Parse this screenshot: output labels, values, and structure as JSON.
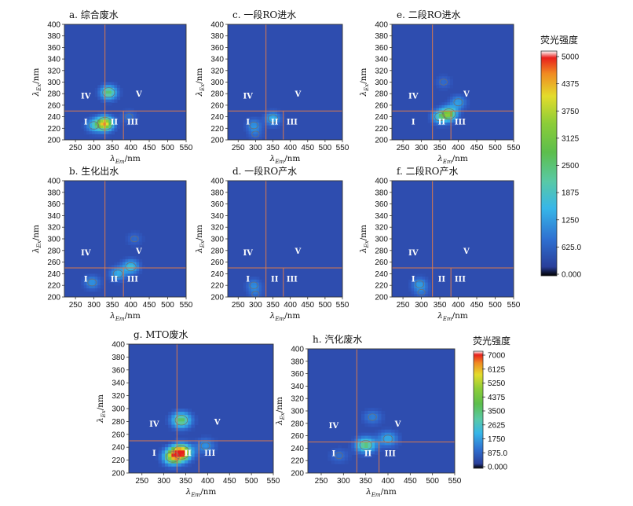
{
  "figure": {
    "x_axis_label": "λEm/nm",
    "y_axis_label": "λEx/nm",
    "colorbar_title": "荧光强度",
    "region_labels": [
      "I",
      "II",
      "III",
      "IV",
      "V"
    ]
  },
  "chart_data": [
    {
      "type": "heatmap",
      "title": "a. 综合废水",
      "xlabel": "λEm/nm",
      "ylabel": "λEx/nm",
      "xlim": [
        220,
        550
      ],
      "ylim": [
        200,
        400
      ],
      "xticks": [
        250,
        300,
        350,
        400,
        450,
        500,
        550
      ],
      "yticks": [
        200,
        220,
        240,
        260,
        280,
        300,
        320,
        340,
        360,
        380,
        400
      ],
      "color_scale_max": 5000,
      "divider_lines": {
        "vertical_em": 330,
        "horizontal_ex": 250,
        "region3_split_em": 380
      },
      "peaks": [
        {
          "em": 340,
          "ex": 282,
          "intensity": 2600
        },
        {
          "em": 330,
          "ex": 228,
          "intensity": 4200
        },
        {
          "em": 300,
          "ex": 225,
          "intensity": 1500
        },
        {
          "em": 395,
          "ex": 240,
          "intensity": 700
        }
      ]
    },
    {
      "type": "heatmap",
      "title": "b. 生化出水",
      "xlabel": "λEm/nm",
      "ylabel": "λEx/nm",
      "xlim": [
        220,
        550
      ],
      "ylim": [
        200,
        400
      ],
      "xticks": [
        250,
        300,
        350,
        400,
        450,
        500,
        550
      ],
      "yticks": [
        200,
        220,
        240,
        260,
        280,
        300,
        320,
        340,
        360,
        380,
        400
      ],
      "color_scale_max": 5000,
      "divider_lines": {
        "vertical_em": 330,
        "horizontal_ex": 250,
        "region3_split_em": 380
      },
      "peaks": [
        {
          "em": 400,
          "ex": 252,
          "intensity": 1800
        },
        {
          "em": 365,
          "ex": 240,
          "intensity": 1400
        },
        {
          "em": 295,
          "ex": 225,
          "intensity": 1100
        },
        {
          "em": 410,
          "ex": 300,
          "intensity": 600
        }
      ]
    },
    {
      "type": "heatmap",
      "title": "c. 一段RO进水",
      "xlabel": "λEm/nm",
      "ylabel": "λEx/nm",
      "xlim": [
        220,
        550
      ],
      "ylim": [
        200,
        400
      ],
      "xticks": [
        250,
        300,
        350,
        400,
        450,
        500,
        550
      ],
      "yticks": [
        200,
        220,
        240,
        260,
        280,
        300,
        320,
        340,
        360,
        380,
        400
      ],
      "color_scale_max": 5000,
      "divider_lines": {
        "vertical_em": 330,
        "horizontal_ex": 250,
        "region3_split_em": 380
      },
      "peaks": [
        {
          "em": 350,
          "ex": 237,
          "intensity": 1500
        },
        {
          "em": 295,
          "ex": 225,
          "intensity": 1000
        },
        {
          "em": 300,
          "ex": 210,
          "intensity": 500
        }
      ]
    },
    {
      "type": "heatmap",
      "title": "d. 一段RO产水",
      "xlabel": "λEm/nm",
      "ylabel": "λEx/nm",
      "xlim": [
        220,
        550
      ],
      "ylim": [
        200,
        400
      ],
      "xticks": [
        250,
        300,
        350,
        400,
        450,
        500,
        550
      ],
      "yticks": [
        200,
        220,
        240,
        260,
        280,
        300,
        320,
        340,
        360,
        380,
        400
      ],
      "color_scale_max": 5000,
      "divider_lines": {
        "vertical_em": 330,
        "horizontal_ex": 250,
        "region3_split_em": 380
      },
      "peaks": [
        {
          "em": 295,
          "ex": 220,
          "intensity": 900
        },
        {
          "em": 300,
          "ex": 205,
          "intensity": 500
        }
      ]
    },
    {
      "type": "heatmap",
      "title": "e. 二段RO进水",
      "xlabel": "λEm/nm",
      "ylabel": "λEx/nm",
      "xlim": [
        220,
        550
      ],
      "ylim": [
        200,
        400
      ],
      "xticks": [
        250,
        300,
        350,
        400,
        450,
        500,
        550
      ],
      "yticks": [
        200,
        220,
        240,
        260,
        280,
        300,
        320,
        340,
        360,
        380,
        400
      ],
      "color_scale_max": 5000,
      "divider_lines": {
        "vertical_em": 330,
        "horizontal_ex": 250,
        "region3_split_em": 380
      },
      "peaks": [
        {
          "em": 375,
          "ex": 245,
          "intensity": 2900
        },
        {
          "em": 350,
          "ex": 240,
          "intensity": 1800
        },
        {
          "em": 400,
          "ex": 265,
          "intensity": 1200
        },
        {
          "em": 360,
          "ex": 300,
          "intensity": 600
        }
      ]
    },
    {
      "type": "heatmap",
      "title": "f. 二段RO产水",
      "xlabel": "λEm/nm",
      "ylabel": "λEx/nm",
      "xlim": [
        220,
        550
      ],
      "ylim": [
        200,
        400
      ],
      "xticks": [
        250,
        300,
        350,
        400,
        450,
        500,
        550
      ],
      "yticks": [
        200,
        220,
        240,
        260,
        280,
        300,
        320,
        340,
        360,
        380,
        400
      ],
      "color_scale_max": 5000,
      "divider_lines": {
        "vertical_em": 330,
        "horizontal_ex": 250,
        "region3_split_em": 380
      },
      "peaks": [
        {
          "em": 295,
          "ex": 222,
          "intensity": 1100
        },
        {
          "em": 300,
          "ex": 208,
          "intensity": 500
        }
      ]
    },
    {
      "type": "heatmap",
      "title": "g. MTO废水",
      "xlabel": "λEm/nm",
      "ylabel": "λEx/nm",
      "xlim": [
        220,
        550
      ],
      "ylim": [
        200,
        400
      ],
      "xticks": [
        250,
        300,
        350,
        400,
        450,
        500,
        550
      ],
      "yticks": [
        200,
        220,
        240,
        260,
        280,
        300,
        320,
        340,
        360,
        380,
        400
      ],
      "color_scale_max": 7000,
      "divider_lines": {
        "vertical_em": 330,
        "horizontal_ex": 250,
        "region3_split_em": 380
      },
      "peaks": [
        {
          "em": 340,
          "ex": 232,
          "intensity": 6600
        },
        {
          "em": 320,
          "ex": 225,
          "intensity": 4400
        },
        {
          "em": 340,
          "ex": 282,
          "intensity": 3800
        },
        {
          "em": 395,
          "ex": 242,
          "intensity": 1500
        }
      ]
    },
    {
      "type": "heatmap",
      "title": "h. 汽化废水",
      "xlabel": "λEm/nm",
      "ylabel": "λEx/nm",
      "xlim": [
        220,
        550
      ],
      "ylim": [
        200,
        400
      ],
      "xticks": [
        250,
        300,
        350,
        400,
        450,
        500,
        550
      ],
      "yticks": [
        200,
        220,
        240,
        260,
        280,
        300,
        320,
        340,
        360,
        380,
        400
      ],
      "color_scale_max": 7000,
      "divider_lines": {
        "vertical_em": 330,
        "horizontal_ex": 250,
        "region3_split_em": 380
      },
      "peaks": [
        {
          "em": 350,
          "ex": 245,
          "intensity": 3600
        },
        {
          "em": 400,
          "ex": 255,
          "intensity": 2000
        },
        {
          "em": 365,
          "ex": 290,
          "intensity": 1200
        },
        {
          "em": 290,
          "ex": 228,
          "intensity": 900
        }
      ]
    }
  ],
  "colorbars": [
    {
      "ticks": [
        "5000",
        "4375",
        "3750",
        "3125",
        "2500",
        "1875",
        "1250",
        "625.0",
        "0.000"
      ]
    },
    {
      "ticks": [
        "7000",
        "6125",
        "5250",
        "4375",
        "3500",
        "2625",
        "1750",
        "875.0",
        "0.000"
      ]
    }
  ]
}
